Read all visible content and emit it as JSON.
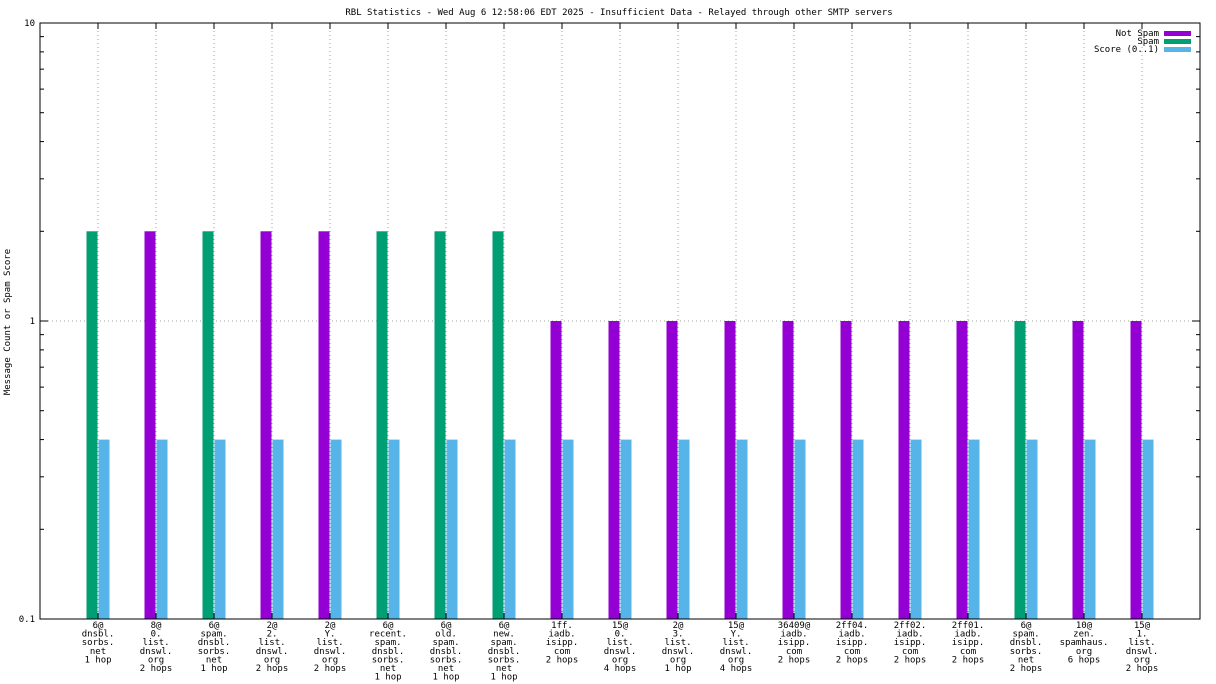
{
  "chart_data": {
    "type": "bar",
    "title": "RBL Statistics - Wed Aug  6 12:58:06 EDT 2025 - Insufficient Data - Relayed through other SMTP servers",
    "xlabel": "",
    "ylabel": "Message Count or Spam Score",
    "yscale": "log",
    "ylim": [
      0.1,
      10
    ],
    "yticks": [
      "0.1",
      "1",
      "10"
    ],
    "grid": true,
    "legend_position": "top-right",
    "categories": [
      [
        "6@",
        "dnsbl.",
        "sorbs.",
        "net",
        "1 hop"
      ],
      [
        "8@",
        "0.",
        "list.",
        "dnswl.",
        "org",
        "2 hops"
      ],
      [
        "6@",
        "spam.",
        "dnsbl.",
        "sorbs.",
        "net",
        "1 hop"
      ],
      [
        "2@",
        "2.",
        "list.",
        "dnswl.",
        "org",
        "2 hops"
      ],
      [
        "2@",
        "Y.",
        "list.",
        "dnswl.",
        "org",
        "2 hops"
      ],
      [
        "6@",
        "recent.",
        "spam.",
        "dnsbl.",
        "sorbs.",
        "net",
        "1 hop"
      ],
      [
        "6@",
        "old.",
        "spam.",
        "dnsbl.",
        "sorbs.",
        "net",
        "1 hop"
      ],
      [
        "6@",
        "new.",
        "spam.",
        "dnsbl.",
        "sorbs.",
        "net",
        "1 hop"
      ],
      [
        "1ff.",
        "iadb.",
        "isipp.",
        "com",
        "2 hops"
      ],
      [
        "15@",
        "0.",
        "list.",
        "dnswl.",
        "org",
        "4 hops"
      ],
      [
        "2@",
        "3.",
        "list.",
        "dnswl.",
        "org",
        "1 hop"
      ],
      [
        "15@",
        "Y.",
        "list.",
        "dnswl.",
        "org",
        "4 hops"
      ],
      [
        "36409@",
        "iadb.",
        "isipp.",
        "com",
        "2 hops"
      ],
      [
        "2ff04.",
        "iadb.",
        "isipp.",
        "com",
        "2 hops"
      ],
      [
        "2ff02.",
        "iadb.",
        "isipp.",
        "com",
        "2 hops"
      ],
      [
        "2ff01.",
        "iadb.",
        "isipp.",
        "com",
        "2 hops"
      ],
      [
        "6@",
        "spam.",
        "dnsbl.",
        "sorbs.",
        "net",
        "2 hops"
      ],
      [
        "10@",
        "zen.",
        "spamhaus.",
        "org",
        "6 hops"
      ],
      [
        "15@",
        "1.",
        "list.",
        "dnswl.",
        "org",
        "2 hops"
      ]
    ],
    "series": [
      {
        "name": "Not Spam",
        "color": "#9400d3",
        "values": [
          null,
          2,
          null,
          2,
          2,
          null,
          null,
          null,
          1,
          1,
          1,
          1,
          1,
          1,
          1,
          1,
          null,
          1,
          1
        ]
      },
      {
        "name": "Spam",
        "color": "#009e73",
        "values": [
          2,
          null,
          2,
          null,
          null,
          2,
          2,
          2,
          null,
          null,
          null,
          null,
          null,
          null,
          null,
          null,
          1,
          null,
          null
        ]
      },
      {
        "name": "Score (0..1)",
        "color": "#56b4e9",
        "values": [
          0.4,
          0.4,
          0.4,
          0.4,
          0.4,
          0.4,
          0.4,
          0.4,
          0.4,
          0.4,
          0.4,
          0.4,
          0.4,
          0.4,
          0.4,
          0.4,
          0.4,
          0.4,
          0.4
        ]
      }
    ]
  }
}
